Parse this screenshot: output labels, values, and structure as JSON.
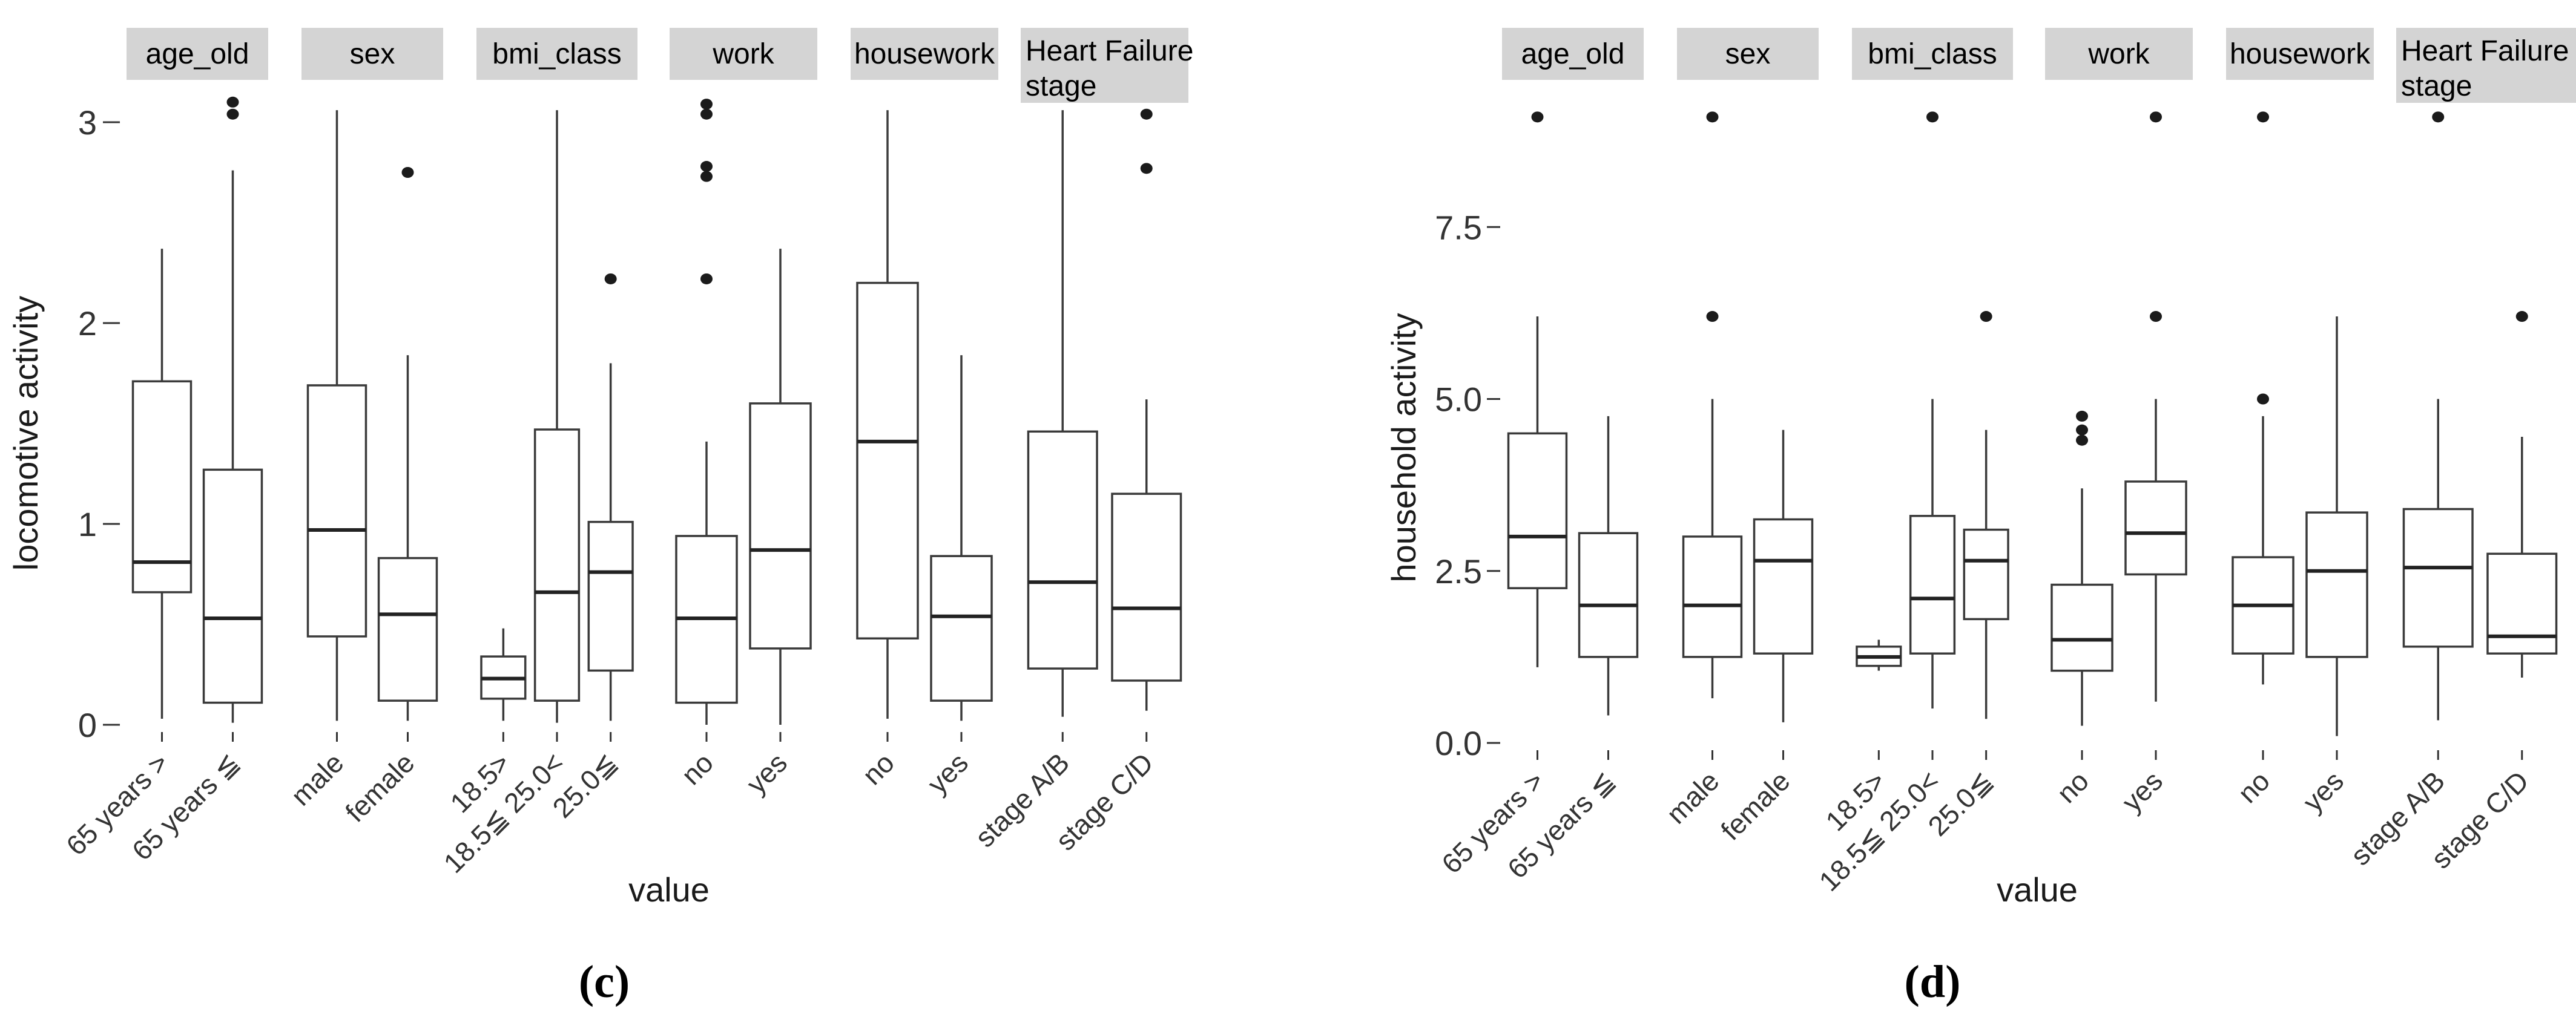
{
  "figure": {
    "colors": {
      "background": "#ffffff",
      "strip_fill": "#d4d4d4",
      "box_stroke": "#3a3a3a",
      "median_stroke": "#222222",
      "whisker_stroke": "#3a3a3a",
      "outlier_fill": "#1b1b1b",
      "header_text": "#000000",
      "tick_text": "#333333"
    }
  },
  "chart_data": [
    {
      "id": "c",
      "type": "boxplot",
      "caption": "(c)",
      "ylabel": "locomotive activity",
      "xlabel": "value",
      "ylim": [
        0,
        3.2
      ],
      "ytick_values": [
        0,
        1,
        2,
        3
      ],
      "ytick_labels": [
        "0",
        "1",
        "2",
        "3"
      ],
      "legend": "none",
      "grid": "off",
      "facets": [
        {
          "label_lines": [
            "age_old"
          ],
          "boxes": [
            {
              "category": "65 years >",
              "whisker_low": 0.03,
              "q1": 0.66,
              "median": 0.81,
              "q3": 1.71,
              "whisker_high": 2.37,
              "outliers": []
            },
            {
              "category": "65 years ≦",
              "whisker_low": 0.01,
              "q1": 0.11,
              "median": 0.53,
              "q3": 1.27,
              "whisker_high": 2.76,
              "outliers": [
                3.04,
                3.1
              ]
            }
          ]
        },
        {
          "label_lines": [
            "sex"
          ],
          "boxes": [
            {
              "category": "male",
              "whisker_low": 0.02,
              "q1": 0.44,
              "median": 0.97,
              "q3": 1.69,
              "whisker_high": 3.06,
              "outliers": []
            },
            {
              "category": "female",
              "whisker_low": 0.02,
              "q1": 0.12,
              "median": 0.55,
              "q3": 0.83,
              "whisker_high": 1.84,
              "outliers": [
                2.75
              ]
            }
          ]
        },
        {
          "label_lines": [
            "bmi_class"
          ],
          "boxes": [
            {
              "category": "18.5>",
              "whisker_low": 0.02,
              "q1": 0.13,
              "median": 0.23,
              "q3": 0.34,
              "whisker_high": 0.48,
              "outliers": []
            },
            {
              "category": "18.5≦ 25.0<",
              "whisker_low": 0.01,
              "q1": 0.12,
              "median": 0.66,
              "q3": 1.47,
              "whisker_high": 3.06,
              "outliers": []
            },
            {
              "category": "25.0≦",
              "whisker_low": 0.02,
              "q1": 0.27,
              "median": 0.76,
              "q3": 1.01,
              "whisker_high": 1.8,
              "outliers": [
                2.22
              ]
            }
          ]
        },
        {
          "label_lines": [
            "work"
          ],
          "boxes": [
            {
              "category": "no",
              "whisker_low": 0.0,
              "q1": 0.11,
              "median": 0.53,
              "q3": 0.94,
              "whisker_high": 1.41,
              "outliers": [
                2.22,
                2.73,
                2.78,
                3.04,
                3.09
              ]
            },
            {
              "category": "yes",
              "whisker_low": 0.0,
              "q1": 0.38,
              "median": 0.87,
              "q3": 1.6,
              "whisker_high": 2.37,
              "outliers": []
            }
          ]
        },
        {
          "label_lines": [
            "housework"
          ],
          "boxes": [
            {
              "category": "no",
              "whisker_low": 0.03,
              "q1": 0.43,
              "median": 1.41,
              "q3": 2.2,
              "whisker_high": 3.06,
              "outliers": []
            },
            {
              "category": "yes",
              "whisker_low": 0.02,
              "q1": 0.12,
              "median": 0.54,
              "q3": 0.84,
              "whisker_high": 1.84,
              "outliers": []
            }
          ]
        },
        {
          "label_lines": [
            "Heart Failure",
            "stage"
          ],
          "boxes": [
            {
              "category": "stage A/B",
              "whisker_low": 0.04,
              "q1": 0.28,
              "median": 0.71,
              "q3": 1.46,
              "whisker_high": 3.06,
              "outliers": []
            },
            {
              "category": "stage C/D",
              "whisker_low": 0.07,
              "q1": 0.22,
              "median": 0.58,
              "q3": 1.15,
              "whisker_high": 1.62,
              "outliers": [
                2.77,
                3.04
              ]
            }
          ]
        }
      ]
    },
    {
      "id": "d",
      "type": "boxplot",
      "caption": "(d)",
      "ylabel": "household activity",
      "xlabel": "value",
      "ylim": [
        0,
        9.3
      ],
      "ytick_values": [
        0,
        2.5,
        5,
        7.5
      ],
      "ytick_labels": [
        "0.0",
        "2.5",
        "5.0",
        "7.5"
      ],
      "legend": "none",
      "grid": "off",
      "facets": [
        {
          "label_lines": [
            "age_old"
          ],
          "boxes": [
            {
              "category": "65 years >",
              "whisker_low": 1.1,
              "q1": 2.25,
              "median": 3.0,
              "q3": 4.5,
              "whisker_high": 6.2,
              "outliers": [
                9.1
              ]
            },
            {
              "category": "65 years ≦",
              "whisker_low": 0.4,
              "q1": 1.25,
              "median": 2.0,
              "q3": 3.05,
              "whisker_high": 4.75,
              "outliers": []
            }
          ]
        },
        {
          "label_lines": [
            "sex"
          ],
          "boxes": [
            {
              "category": "male",
              "whisker_low": 0.65,
              "q1": 1.25,
              "median": 2.0,
              "q3": 3.0,
              "whisker_high": 5.0,
              "outliers": [
                6.2,
                9.1
              ]
            },
            {
              "category": "female",
              "whisker_low": 0.3,
              "q1": 1.3,
              "median": 2.65,
              "q3": 3.25,
              "whisker_high": 4.55,
              "outliers": []
            }
          ]
        },
        {
          "label_lines": [
            "bmi_class"
          ],
          "boxes": [
            {
              "category": "18.5>",
              "whisker_low": 1.05,
              "q1": 1.12,
              "median": 1.25,
              "q3": 1.4,
              "whisker_high": 1.5,
              "outliers": []
            },
            {
              "category": "18.5≦ 25.0<",
              "whisker_low": 0.5,
              "q1": 1.3,
              "median": 2.1,
              "q3": 3.3,
              "whisker_high": 5.0,
              "outliers": [
                9.1
              ]
            },
            {
              "category": "25.0≦",
              "whisker_low": 0.35,
              "q1": 1.8,
              "median": 2.65,
              "q3": 3.1,
              "whisker_high": 4.55,
              "outliers": [
                6.2
              ]
            }
          ]
        },
        {
          "label_lines": [
            "work"
          ],
          "boxes": [
            {
              "category": "no",
              "whisker_low": 0.25,
              "q1": 1.05,
              "median": 1.5,
              "q3": 2.3,
              "whisker_high": 3.7,
              "outliers": [
                4.4,
                4.55,
                4.75
              ]
            },
            {
              "category": "yes",
              "whisker_low": 0.6,
              "q1": 2.45,
              "median": 3.05,
              "q3": 3.8,
              "whisker_high": 5.0,
              "outliers": [
                6.2,
                9.1
              ]
            }
          ]
        },
        {
          "label_lines": [
            "housework"
          ],
          "boxes": [
            {
              "category": "no",
              "whisker_low": 0.85,
              "q1": 1.3,
              "median": 2.0,
              "q3": 2.7,
              "whisker_high": 4.75,
              "outliers": [
                5.0,
                9.1
              ]
            },
            {
              "category": "yes",
              "whisker_low": 0.1,
              "q1": 1.25,
              "median": 2.5,
              "q3": 3.35,
              "whisker_high": 6.2,
              "outliers": []
            }
          ]
        },
        {
          "label_lines": [
            "Heart Failure",
            "stage"
          ],
          "boxes": [
            {
              "category": "stage A/B",
              "whisker_low": 0.33,
              "q1": 1.4,
              "median": 2.55,
              "q3": 3.4,
              "whisker_high": 5.0,
              "outliers": [
                9.1
              ]
            },
            {
              "category": "stage C/D",
              "whisker_low": 0.95,
              "q1": 1.3,
              "median": 1.55,
              "q3": 2.75,
              "whisker_high": 4.45,
              "outliers": [
                6.2
              ]
            }
          ]
        }
      ]
    }
  ]
}
